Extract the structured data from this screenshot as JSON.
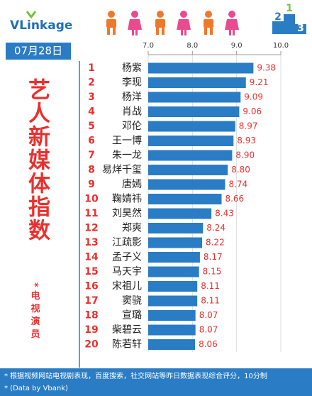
{
  "chart_data": {
    "type": "barh",
    "logo": "VLinkage",
    "podium": [
      "2",
      "1",
      "3"
    ],
    "date": "07月28日",
    "title": "艺人新媒体指数",
    "subtitle": "*电视演员",
    "ranks": [
      "1",
      "2",
      "3",
      "4",
      "5",
      "6",
      "7",
      "8",
      "9",
      "10",
      "11",
      "12",
      "13",
      "14",
      "15",
      "16",
      "17",
      "18",
      "19",
      "20"
    ],
    "categories": [
      "杨紫",
      "李现",
      "杨洋",
      "肖战",
      "邓伦",
      "王一博",
      "朱一龙",
      "易烊千玺",
      "唐嫣",
      "鞠婧祎",
      "刘昊然",
      "郑爽",
      "江疏影",
      "孟子义",
      "马天宇",
      "宋祖儿",
      "窦骁",
      "宣璐",
      "柴碧云",
      "陈若轩"
    ],
    "values": [
      9.38,
      9.21,
      9.09,
      9.06,
      8.97,
      8.93,
      8.9,
      8.8,
      8.74,
      8.66,
      8.43,
      8.24,
      8.22,
      8.17,
      8.15,
      8.11,
      8.11,
      8.07,
      8.07,
      8.06
    ],
    "value_labels": [
      "9.38",
      "9.21",
      "9.09",
      "9.06",
      "8.97",
      "8.93",
      "8.90",
      "8.80",
      "8.74",
      "8.66",
      "8.43",
      "8.24",
      "8.22",
      "8.17",
      "8.15",
      "8.11",
      "8.11",
      "8.07",
      "8.07",
      "8.06"
    ],
    "color": "#2a7cc4",
    "xlim": [
      7,
      10
    ],
    "xticks": [
      {
        "value": 7,
        "label": "7.0"
      },
      {
        "value": 8,
        "label": "8.0"
      },
      {
        "value": 9,
        "label": "9.0"
      },
      {
        "value": 10,
        "label": "10.0"
      }
    ],
    "grid": true,
    "footnotes": [
      "* 根据视频网站电视剧表现，百度搜索，社交网站等昨日数据表现综合评分，10分制",
      "* (Data by Vbank)"
    ]
  }
}
